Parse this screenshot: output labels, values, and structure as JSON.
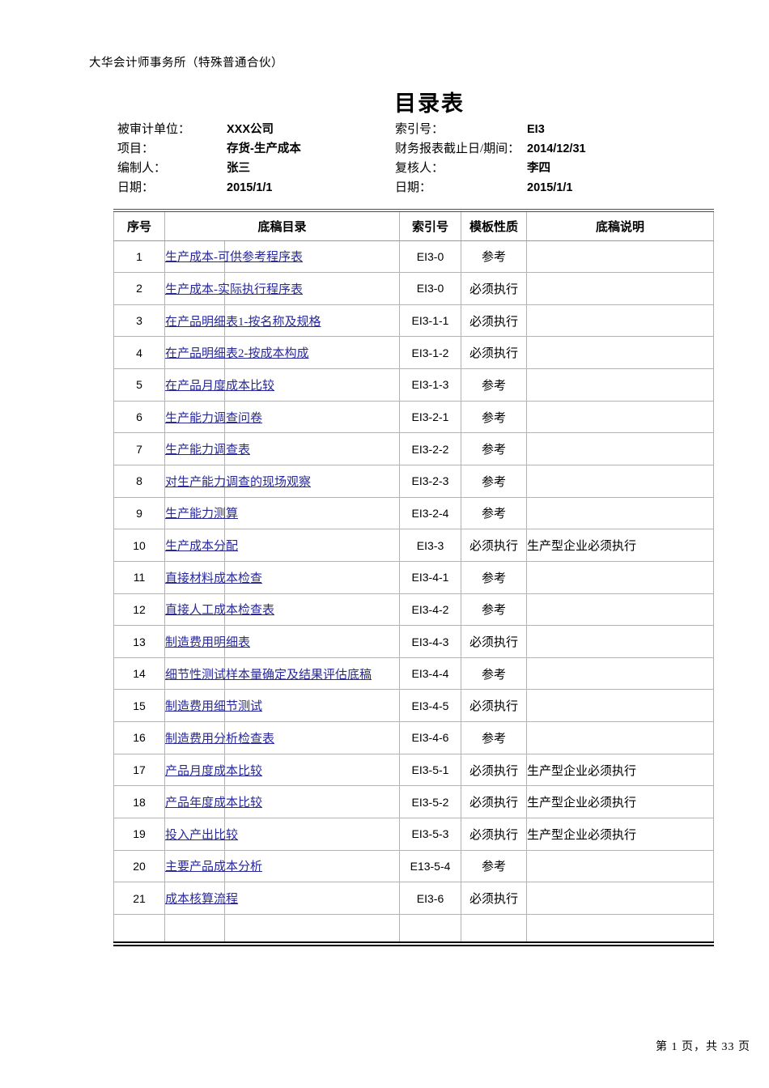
{
  "header": {
    "firm_name": "大华会计师事务所（特殊普通合伙）",
    "title": "目录表"
  },
  "info": {
    "left": [
      {
        "label": "被审计单位：",
        "value": "XXX公司"
      },
      {
        "label": "项目：",
        "value": "存货-生产成本"
      },
      {
        "label": "编制人：",
        "value": "张三"
      },
      {
        "label": "日期：",
        "value": "2015/1/1"
      }
    ],
    "right": [
      {
        "label": "索引号：",
        "value": "EI3"
      },
      {
        "label": "财务报表截止日/期间：",
        "value": "2014/12/31"
      },
      {
        "label": "复核人：",
        "value": "李四"
      },
      {
        "label": "日期：",
        "value": "2015/1/1"
      }
    ]
  },
  "table": {
    "headers": {
      "no": "序号",
      "title": "底稿目录",
      "index": "索引号",
      "type": "模板性质",
      "note": "底稿说明"
    },
    "rows": [
      {
        "no": "1",
        "title": "生产成本-可供参考程序表",
        "index": "EI3-0",
        "type": "参考",
        "note": ""
      },
      {
        "no": "2",
        "title": "生产成本-实际执行程序表",
        "index": "EI3-0",
        "type": "必须执行",
        "note": ""
      },
      {
        "no": "3",
        "title": "在产品明细表1-按名称及规格",
        "index": "EI3-1-1",
        "type": "必须执行",
        "note": ""
      },
      {
        "no": "4",
        "title": "在产品明细表2-按成本构成",
        "index": "EI3-1-2",
        "type": "必须执行",
        "note": ""
      },
      {
        "no": "5",
        "title": "在产品月度成本比较",
        "index": "EI3-1-3",
        "type": "参考",
        "note": ""
      },
      {
        "no": "6",
        "title": "生产能力调查问卷",
        "index": "EI3-2-1",
        "type": "参考",
        "note": ""
      },
      {
        "no": "7",
        "title": "生产能力调查表",
        "index": "EI3-2-2",
        "type": "参考",
        "note": ""
      },
      {
        "no": "8",
        "title": "对生产能力调查的现场观察",
        "index": "EI3-2-3",
        "type": "参考",
        "note": ""
      },
      {
        "no": "9",
        "title": "生产能力测算",
        "index": "EI3-2-4",
        "type": "参考",
        "note": ""
      },
      {
        "no": "10",
        "title": "生产成本分配",
        "index": "EI3-3",
        "type": "必须执行",
        "note": "生产型企业必须执行"
      },
      {
        "no": "11",
        "title": "直接材料成本检查",
        "index": "EI3-4-1",
        "type": "参考",
        "note": ""
      },
      {
        "no": "12",
        "title": "直接人工成本检查表",
        "index": "EI3-4-2",
        "type": "参考",
        "note": ""
      },
      {
        "no": "13",
        "title": "制造费用明细表",
        "index": "EI3-4-3",
        "type": "必须执行",
        "note": ""
      },
      {
        "no": "14",
        "title": "细节性测试样本量确定及结果评估底稿",
        "index": "EI3-4-4",
        "type": "参考",
        "note": ""
      },
      {
        "no": "15",
        "title": "制造费用细节测试",
        "index": "EI3-4-5",
        "type": "必须执行",
        "note": ""
      },
      {
        "no": "16",
        "title": "制造费用分析检查表",
        "index": "EI3-4-6",
        "type": "参考",
        "note": ""
      },
      {
        "no": "17",
        "title": "产品月度成本比较",
        "index": "EI3-5-1",
        "type": "必须执行",
        "note": "生产型企业必须执行"
      },
      {
        "no": "18",
        "title": "产品年度成本比较",
        "index": "EI3-5-2",
        "type": "必须执行",
        "note": "生产型企业必须执行"
      },
      {
        "no": "19",
        "title": "投入产出比较",
        "index": "EI3-5-3",
        "type": "必须执行",
        "note": "生产型企业必须执行"
      },
      {
        "no": "20",
        "title": "主要产品成本分析",
        "index": "E13-5-4",
        "type": "参考",
        "note": ""
      },
      {
        "no": "21",
        "title": "成本核算流程",
        "index": "EI3-6",
        "type": "必须执行",
        "note": ""
      }
    ]
  },
  "footer": {
    "page_text": "第 1 页，共 33 页"
  },
  "colors": {
    "link": "#28289B",
    "gridline": "#b3b3b3",
    "table_top_border": "#4d4d4d",
    "table_bottom_border": "#000000"
  }
}
